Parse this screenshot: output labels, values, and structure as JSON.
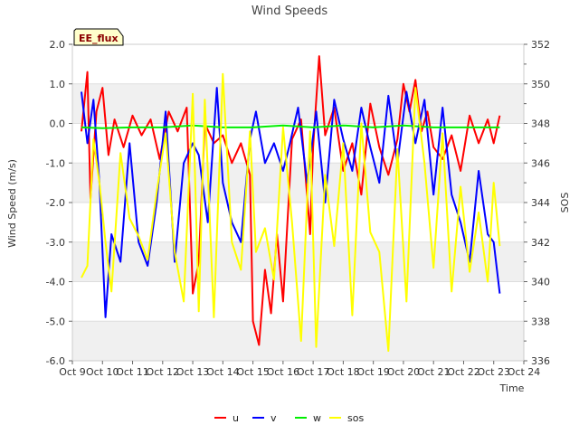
{
  "chart_data": {
    "type": "line",
    "title": "Wind Speeds",
    "badge": "EE_flux",
    "xlabel": "Time",
    "ylabel": "Wind Speed (m/s)",
    "y2label": "SOS",
    "x_tick_labels": [
      "Oct 9",
      "Oct 10",
      "Oct 11",
      "Oct 12",
      "Oct 13",
      "Oct 14",
      "Oct 15",
      "Oct 16",
      "Oct 17",
      "Oct 18",
      "Oct 19",
      "Oct 20",
      "Oct 21",
      "Oct 22",
      "Oct 23",
      "Oct 24"
    ],
    "xlim": [
      9,
      24
    ],
    "ylim": [
      -6,
      2
    ],
    "y_ticks": [
      2.0,
      1.0,
      0.0,
      -1.0,
      -2.0,
      -3.0,
      -4.0,
      -5.0,
      -6.0
    ],
    "y_tick_labels": [
      "2.0",
      "1.0",
      "0.0",
      "-1.0",
      "-2.0",
      "-3.0",
      "-4.0",
      "-5.0",
      "-6.0"
    ],
    "y2lim": [
      336,
      352
    ],
    "y2_ticks": [
      352,
      350,
      348,
      346,
      344,
      342,
      340,
      338,
      336
    ],
    "y2_tick_labels": [
      "352",
      "350",
      "348",
      "346",
      "344",
      "342",
      "340",
      "338",
      "336"
    ],
    "grid": true,
    "legend_position": "bottom-center",
    "series": [
      {
        "name": "u",
        "color": "#ff0000",
        "axis": "left",
        "x": [
          9.3,
          9.5,
          9.6,
          9.8,
          10.0,
          10.2,
          10.4,
          10.7,
          11.0,
          11.3,
          11.6,
          11.9,
          12.2,
          12.5,
          12.8,
          13.0,
          13.2,
          13.4,
          13.7,
          14.0,
          14.3,
          14.6,
          14.9,
          15.0,
          15.2,
          15.4,
          15.6,
          15.8,
          16.0,
          16.3,
          16.6,
          16.9,
          17.0,
          17.2,
          17.4,
          17.7,
          18.0,
          18.3,
          18.6,
          18.9,
          19.2,
          19.5,
          19.8,
          20.0,
          20.2,
          20.4,
          20.6,
          20.8,
          21.0,
          21.3,
          21.6,
          21.9,
          22.2,
          22.5,
          22.8,
          23.0,
          23.2
        ],
        "y": [
          -0.2,
          1.3,
          -1.9,
          0.3,
          0.9,
          -0.8,
          0.1,
          -0.6,
          0.2,
          -0.3,
          0.1,
          -0.9,
          0.3,
          -0.2,
          0.4,
          -4.3,
          -3.5,
          0.0,
          -0.5,
          -0.3,
          -1.0,
          -0.5,
          -1.3,
          -5.0,
          -5.6,
          -3.7,
          -4.8,
          -2.8,
          -4.5,
          -0.4,
          0.1,
          -2.8,
          -0.6,
          1.7,
          -0.3,
          0.4,
          -1.2,
          -0.5,
          -1.8,
          0.5,
          -0.6,
          -1.3,
          -0.4,
          1.0,
          0.3,
          1.1,
          -0.2,
          0.3,
          -0.6,
          -0.9,
          -0.3,
          -1.2,
          0.2,
          -0.5,
          0.1,
          -0.5,
          0.2
        ]
      },
      {
        "name": "v",
        "color": "#0000ff",
        "axis": "left",
        "x": [
          9.3,
          9.5,
          9.7,
          9.9,
          10.1,
          10.3,
          10.6,
          10.9,
          11.2,
          11.5,
          11.8,
          12.1,
          12.4,
          12.7,
          13.0,
          13.2,
          13.5,
          13.8,
          14.0,
          14.3,
          14.6,
          14.9,
          15.1,
          15.4,
          15.7,
          16.0,
          16.2,
          16.5,
          16.8,
          17.1,
          17.4,
          17.7,
          18.0,
          18.3,
          18.6,
          18.9,
          19.2,
          19.5,
          19.8,
          20.1,
          20.4,
          20.7,
          21.0,
          21.3,
          21.6,
          21.9,
          22.2,
          22.5,
          22.8,
          23.0,
          23.2
        ],
        "y": [
          0.8,
          -0.5,
          0.6,
          -1.5,
          -4.9,
          -2.8,
          -3.5,
          -0.5,
          -3.0,
          -3.6,
          -2.0,
          0.3,
          -3.5,
          -1.0,
          -0.5,
          -0.8,
          -2.5,
          0.9,
          -1.5,
          -2.5,
          -3.0,
          -0.4,
          0.3,
          -1.0,
          -0.5,
          -1.2,
          -0.6,
          0.4,
          -1.5,
          0.3,
          -2.0,
          0.6,
          -0.4,
          -1.2,
          0.4,
          -0.6,
          -1.5,
          0.7,
          -1.0,
          0.8,
          -0.5,
          0.6,
          -1.8,
          0.4,
          -1.8,
          -2.5,
          -3.5,
          -1.2,
          -2.8,
          -3.0,
          -4.3
        ]
      },
      {
        "name": "w",
        "color": "#00ee00",
        "axis": "left",
        "x": [
          9.3,
          10,
          11,
          12,
          13,
          14,
          15,
          16,
          17,
          18,
          19,
          20,
          21,
          22,
          23.2
        ],
        "y": [
          -0.1,
          -0.12,
          -0.1,
          -0.1,
          -0.05,
          -0.1,
          -0.1,
          -0.05,
          -0.1,
          -0.05,
          -0.1,
          -0.05,
          -0.1,
          -0.1,
          -0.1
        ]
      },
      {
        "name": "sos",
        "color": "#ffff00",
        "axis": "right",
        "x": [
          9.3,
          9.5,
          9.7,
          9.9,
          10.1,
          10.3,
          10.6,
          10.9,
          11.2,
          11.5,
          11.8,
          12.1,
          12.4,
          12.7,
          13.0,
          13.2,
          13.4,
          13.7,
          14.0,
          14.3,
          14.6,
          14.9,
          15.1,
          15.4,
          15.7,
          16.0,
          16.3,
          16.6,
          16.9,
          17.1,
          17.4,
          17.7,
          18.0,
          18.3,
          18.6,
          18.9,
          19.2,
          19.5,
          19.8,
          20.1,
          20.4,
          20.7,
          21.0,
          21.3,
          21.6,
          21.9,
          22.2,
          22.5,
          22.8,
          23.0,
          23.2
        ],
        "y": [
          340.2,
          340.8,
          347.2,
          345.0,
          342.0,
          339.5,
          346.5,
          343.2,
          342.3,
          341.1,
          344.5,
          347.5,
          341.5,
          339.0,
          349.5,
          338.5,
          349.2,
          338.2,
          350.5,
          342.0,
          340.6,
          347.6,
          341.5,
          342.7,
          340.1,
          347.8,
          343.0,
          337.0,
          347.6,
          336.7,
          345.4,
          341.8,
          347.0,
          338.3,
          348.0,
          342.5,
          341.5,
          336.5,
          346.7,
          339.0,
          349.8,
          346.0,
          340.7,
          347.5,
          339.5,
          344.8,
          340.5,
          343.5,
          340.0,
          345.0,
          341.8
        ]
      }
    ]
  }
}
